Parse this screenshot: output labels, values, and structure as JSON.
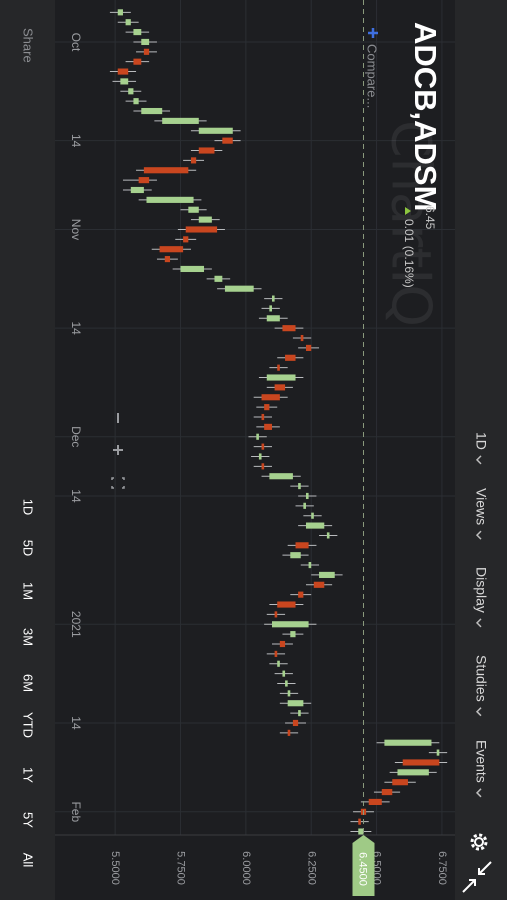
{
  "header": {
    "title": "ADCB,ADSM",
    "price": "6.45",
    "change": "0.01 (0.16%)",
    "compare": "Compare...",
    "watermark": "ChartIQ"
  },
  "menu": [
    "1D",
    "Views",
    "Display",
    "Studies",
    "Events"
  ],
  "ranges": [
    "1D",
    "5D",
    "1M",
    "3M",
    "6M",
    "YTD",
    "1Y",
    "5Y",
    "All"
  ],
  "share": "Share",
  "chart_data": {
    "type": "candlestick",
    "x": [
      0,
      1,
      2,
      3,
      4,
      5,
      6,
      7,
      8,
      9,
      10,
      11,
      12,
      13,
      14,
      15,
      16,
      17,
      18,
      19,
      20,
      21,
      22,
      23,
      24,
      25,
      26,
      27,
      28,
      29,
      30,
      31,
      32,
      33,
      34,
      35,
      36,
      37,
      38,
      39,
      40,
      41,
      42,
      43,
      44,
      45,
      46,
      47,
      48,
      49,
      50,
      51,
      52,
      53,
      54,
      55,
      56,
      57,
      58,
      59,
      60,
      61,
      62,
      63,
      64,
      65,
      66,
      67,
      68,
      69,
      70,
      71,
      72,
      73,
      74,
      75,
      76,
      77,
      78,
      79,
      80,
      81,
      82,
      83
    ],
    "open": [
      5.51,
      5.54,
      5.57,
      5.6,
      5.63,
      5.6,
      5.55,
      5.52,
      5.55,
      5.57,
      5.6,
      5.68,
      5.82,
      5.95,
      5.88,
      5.81,
      5.78,
      5.63,
      5.56,
      5.62,
      5.78,
      5.82,
      5.89,
      5.78,
      5.76,
      5.71,
      5.75,
      5.88,
      5.92,
      6.1,
      6.09,
      6.08,
      6.19,
      6.22,
      6.25,
      6.19,
      6.13,
      6.08,
      6.15,
      6.13,
      6.09,
      6.07,
      6.1,
      6.04,
      6.07,
      6.05,
      6.07,
      6.09,
      6.2,
      6.23,
      6.22,
      6.25,
      6.23,
      6.31,
      6.24,
      6.17,
      6.24,
      6.28,
      6.3,
      6.22,
      6.19,
      6.12,
      6.1,
      6.17,
      6.15,
      6.12,
      6.12,
      6.14,
      6.15,
      6.16,
      6.16,
      6.2,
      6.2,
      6.17,
      6.53,
      6.73,
      6.74,
      6.58,
      6.62,
      6.56,
      6.52,
      6.46,
      6.44,
      6.43
    ],
    "high": [
      5.56,
      5.59,
      5.63,
      5.66,
      5.66,
      5.63,
      5.58,
      5.58,
      5.6,
      5.62,
      5.71,
      5.85,
      5.98,
      5.98,
      5.91,
      5.84,
      5.81,
      5.66,
      5.64,
      5.83,
      5.85,
      5.9,
      5.92,
      5.81,
      5.79,
      5.74,
      5.87,
      5.94,
      6.06,
      6.14,
      6.13,
      6.16,
      6.22,
      6.25,
      6.28,
      6.22,
      6.16,
      6.22,
      6.18,
      6.16,
      6.12,
      6.1,
      6.13,
      6.08,
      6.1,
      6.09,
      6.1,
      6.21,
      6.24,
      6.27,
      6.26,
      6.29,
      6.33,
      6.35,
      6.27,
      6.24,
      6.28,
      6.37,
      6.33,
      6.25,
      6.22,
      6.15,
      6.27,
      6.22,
      6.18,
      6.15,
      6.16,
      6.18,
      6.19,
      6.2,
      6.25,
      6.24,
      6.23,
      6.2,
      6.74,
      6.77,
      6.77,
      6.73,
      6.65,
      6.59,
      6.55,
      6.49,
      6.47,
      6.48
    ],
    "low": [
      5.48,
      5.51,
      5.54,
      5.57,
      5.58,
      5.54,
      5.48,
      5.49,
      5.52,
      5.54,
      5.57,
      5.65,
      5.79,
      5.88,
      5.79,
      5.76,
      5.58,
      5.53,
      5.53,
      5.59,
      5.75,
      5.79,
      5.74,
      5.73,
      5.64,
      5.66,
      5.72,
      5.85,
      5.89,
      6.07,
      6.06,
      6.05,
      6.11,
      6.18,
      6.2,
      6.12,
      6.09,
      6.05,
      6.08,
      6.03,
      6.04,
      6.03,
      6.04,
      6.01,
      6.03,
      6.02,
      6.03,
      6.06,
      6.17,
      6.2,
      6.19,
      6.22,
      6.2,
      6.28,
      6.16,
      6.14,
      6.21,
      6.25,
      6.23,
      6.17,
      6.09,
      6.08,
      6.07,
      6.14,
      6.1,
      6.08,
      6.09,
      6.11,
      6.12,
      6.13,
      6.13,
      6.17,
      6.15,
      6.13,
      6.5,
      6.7,
      6.57,
      6.55,
      6.53,
      6.49,
      6.44,
      6.41,
      6.4,
      6.4
    ],
    "close": [
      5.53,
      5.56,
      5.6,
      5.63,
      5.61,
      5.57,
      5.51,
      5.55,
      5.57,
      5.59,
      5.68,
      5.82,
      5.95,
      5.91,
      5.82,
      5.79,
      5.61,
      5.59,
      5.61,
      5.8,
      5.82,
      5.87,
      5.77,
      5.76,
      5.67,
      5.69,
      5.84,
      5.91,
      6.03,
      6.11,
      6.1,
      6.13,
      6.14,
      6.21,
      6.23,
      6.15,
      6.12,
      6.19,
      6.11,
      6.06,
      6.07,
      6.06,
      6.07,
      6.05,
      6.06,
      6.06,
      6.06,
      6.18,
      6.21,
      6.24,
      6.23,
      6.26,
      6.3,
      6.32,
      6.19,
      6.21,
      6.25,
      6.34,
      6.26,
      6.2,
      6.12,
      6.11,
      6.24,
      6.19,
      6.13,
      6.11,
      6.13,
      6.15,
      6.16,
      6.17,
      6.22,
      6.21,
      6.18,
      6.16,
      6.71,
      6.74,
      6.6,
      6.7,
      6.56,
      6.52,
      6.47,
      6.44,
      6.43,
      6.45
    ],
    "up_color": "#a6d18f",
    "down_color": "#c9461f",
    "xlim": [
      -1.25,
      83.35
    ],
    "xticks": [
      {
        "value": 3,
        "label": "Oct"
      },
      {
        "value": 13,
        "label": "14"
      },
      {
        "value": 22,
        "label": "Nov"
      },
      {
        "value": 32,
        "label": "14"
      },
      {
        "value": 43,
        "label": "Dec"
      },
      {
        "value": 49,
        "label": "14"
      },
      {
        "value": 62,
        "label": "2021"
      },
      {
        "value": 72,
        "label": "14"
      },
      {
        "value": 81,
        "label": "Feb"
      }
    ],
    "ylim": [
      5.27,
      6.8
    ],
    "yticks": [
      {
        "value": 5.5,
        "label": "5.5000"
      },
      {
        "value": 5.75,
        "label": "5.7500"
      },
      {
        "value": 6,
        "label": "6.0000"
      },
      {
        "value": 6.25,
        "label": "6.2500"
      },
      {
        "value": 6.5,
        "label": "6.5000"
      },
      {
        "value": 6.75,
        "label": "6.7500"
      }
    ],
    "current": {
      "value": 6.45,
      "label": "6.4500"
    },
    "grid": true
  }
}
